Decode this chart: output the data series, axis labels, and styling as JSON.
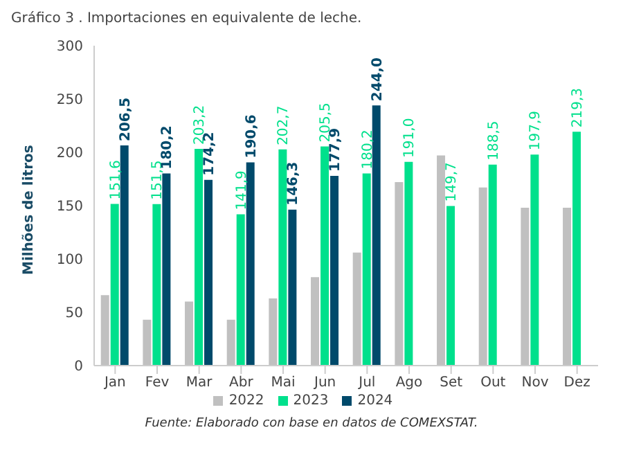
{
  "chart_data": {
    "type": "bar",
    "title": "Gráfico 3 . Importaciones en equivalente de leche.",
    "ylabel": "Milhões de litros",
    "categories": [
      "Jan",
      "Fev",
      "Mar",
      "Abr",
      "Mai",
      "Jun",
      "Jul",
      "Ago",
      "Set",
      "Out",
      "Nov",
      "Dez"
    ],
    "series": [
      {
        "name": "2022",
        "color": "#c0c0c0",
        "values": [
          66,
          43,
          60,
          43,
          63,
          83,
          106,
          172,
          197,
          167,
          148,
          148
        ]
      },
      {
        "name": "2023",
        "color": "#00e08c",
        "values": [
          151.6,
          151.5,
          203.2,
          141.9,
          202.7,
          205.5,
          180.2,
          191.0,
          149.7,
          188.5,
          197.9,
          219.3
        ],
        "value_labels": [
          "151,6",
          "151,5",
          "203,2",
          "141,9",
          "202,7",
          "205,5",
          "180,2",
          "191,0",
          "149,7",
          "188,5",
          "197,9",
          "219,3"
        ]
      },
      {
        "name": "2024",
        "color": "#004a6b",
        "values": [
          206.5,
          180.2,
          174.2,
          190.6,
          146.3,
          177.9,
          244.0,
          null,
          null,
          null,
          null,
          null
        ],
        "value_labels": [
          "206,5",
          "180,2",
          "174,2",
          "190,6",
          "146,3",
          "177,9",
          "244,0",
          null,
          null,
          null,
          null,
          null
        ]
      }
    ],
    "ylim": [
      0,
      300
    ],
    "yticks": [
      0,
      50,
      100,
      150,
      200,
      250,
      300
    ],
    "grid": false,
    "legend": "bottom",
    "annotations": [
      "Fuente: Elaborado con base en datos de COMEXSTAT."
    ]
  }
}
